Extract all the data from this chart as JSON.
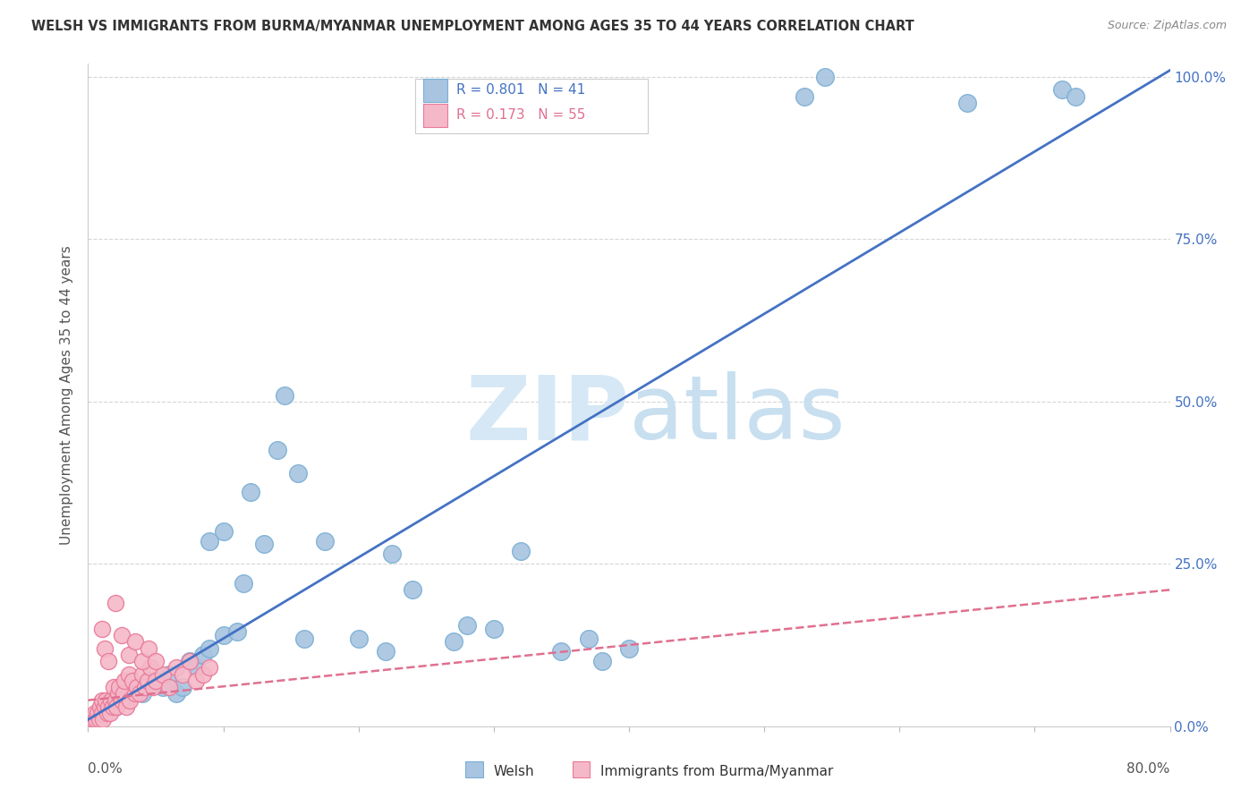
{
  "title": "WELSH VS IMMIGRANTS FROM BURMA/MYANMAR UNEMPLOYMENT AMONG AGES 35 TO 44 YEARS CORRELATION CHART",
  "source": "Source: ZipAtlas.com",
  "ylabel": "Unemployment Among Ages 35 to 44 years",
  "ytick_labels": [
    "100.0%",
    "75.0%",
    "50.0%",
    "25.0%",
    "0.0%"
  ],
  "ytick_values": [
    1.0,
    0.75,
    0.5,
    0.25,
    0.0
  ],
  "xlim": [
    0.0,
    0.8
  ],
  "ylim": [
    0.0,
    1.02
  ],
  "welsh_color": "#a8c4e0",
  "welsh_edge_color": "#7aafd4",
  "burma_color": "#f5b8c8",
  "burma_edge_color": "#e87a9a",
  "welsh_R": "0.801",
  "welsh_N": "41",
  "burma_R": "0.173",
  "burma_N": "55",
  "trendline_welsh_color": "#4472c4",
  "trendline_burma_color": "#e07090",
  "watermark_zip": "ZIP",
  "watermark_atlas": "atlas",
  "watermark_color": "#d6e8f5",
  "welsh_x": [
    0.02,
    0.025,
    0.04,
    0.05,
    0.055,
    0.06,
    0.065,
    0.07,
    0.075,
    0.08,
    0.085,
    0.09,
    0.09,
    0.1,
    0.1,
    0.11,
    0.115,
    0.12,
    0.13,
    0.14,
    0.145,
    0.155,
    0.16,
    0.175,
    0.2,
    0.22,
    0.225,
    0.24,
    0.27,
    0.28,
    0.3,
    0.32,
    0.35,
    0.37,
    0.38,
    0.4,
    0.53,
    0.545,
    0.65,
    0.72,
    0.73
  ],
  "welsh_y": [
    0.03,
    0.04,
    0.05,
    0.07,
    0.06,
    0.08,
    0.05,
    0.06,
    0.1,
    0.09,
    0.11,
    0.12,
    0.285,
    0.3,
    0.14,
    0.145,
    0.22,
    0.36,
    0.28,
    0.425,
    0.51,
    0.39,
    0.135,
    0.285,
    0.135,
    0.115,
    0.265,
    0.21,
    0.13,
    0.155,
    0.15,
    0.27,
    0.115,
    0.135,
    0.1,
    0.12,
    0.97,
    1.0,
    0.96,
    0.98,
    0.97
  ],
  "burma_x": [
    0.004,
    0.005,
    0.006,
    0.007,
    0.008,
    0.009,
    0.01,
    0.01,
    0.011,
    0.012,
    0.013,
    0.014,
    0.015,
    0.016,
    0.017,
    0.018,
    0.019,
    0.02,
    0.021,
    0.022,
    0.023,
    0.025,
    0.026,
    0.027,
    0.028,
    0.03,
    0.031,
    0.033,
    0.035,
    0.036,
    0.038,
    0.04,
    0.042,
    0.044,
    0.046,
    0.048,
    0.05,
    0.055,
    0.06,
    0.065,
    0.07,
    0.075,
    0.08,
    0.085,
    0.09,
    0.01,
    0.012,
    0.015,
    0.02,
    0.025,
    0.03,
    0.035,
    0.04,
    0.045,
    0.05
  ],
  "burma_y": [
    0.01,
    0.02,
    0.01,
    0.02,
    0.01,
    0.03,
    0.02,
    0.04,
    0.01,
    0.03,
    0.04,
    0.02,
    0.03,
    0.02,
    0.04,
    0.03,
    0.06,
    0.04,
    0.03,
    0.05,
    0.06,
    0.04,
    0.05,
    0.07,
    0.03,
    0.08,
    0.04,
    0.07,
    0.05,
    0.06,
    0.05,
    0.08,
    0.06,
    0.07,
    0.09,
    0.06,
    0.07,
    0.08,
    0.06,
    0.09,
    0.08,
    0.1,
    0.07,
    0.08,
    0.09,
    0.15,
    0.12,
    0.1,
    0.19,
    0.14,
    0.11,
    0.13,
    0.1,
    0.12,
    0.1
  ],
  "welsh_trend_x": [
    0.0,
    0.8
  ],
  "welsh_trend_y": [
    0.01,
    1.01
  ],
  "burma_trend_x": [
    0.0,
    0.8
  ],
  "burma_trend_y": [
    0.04,
    0.21
  ]
}
